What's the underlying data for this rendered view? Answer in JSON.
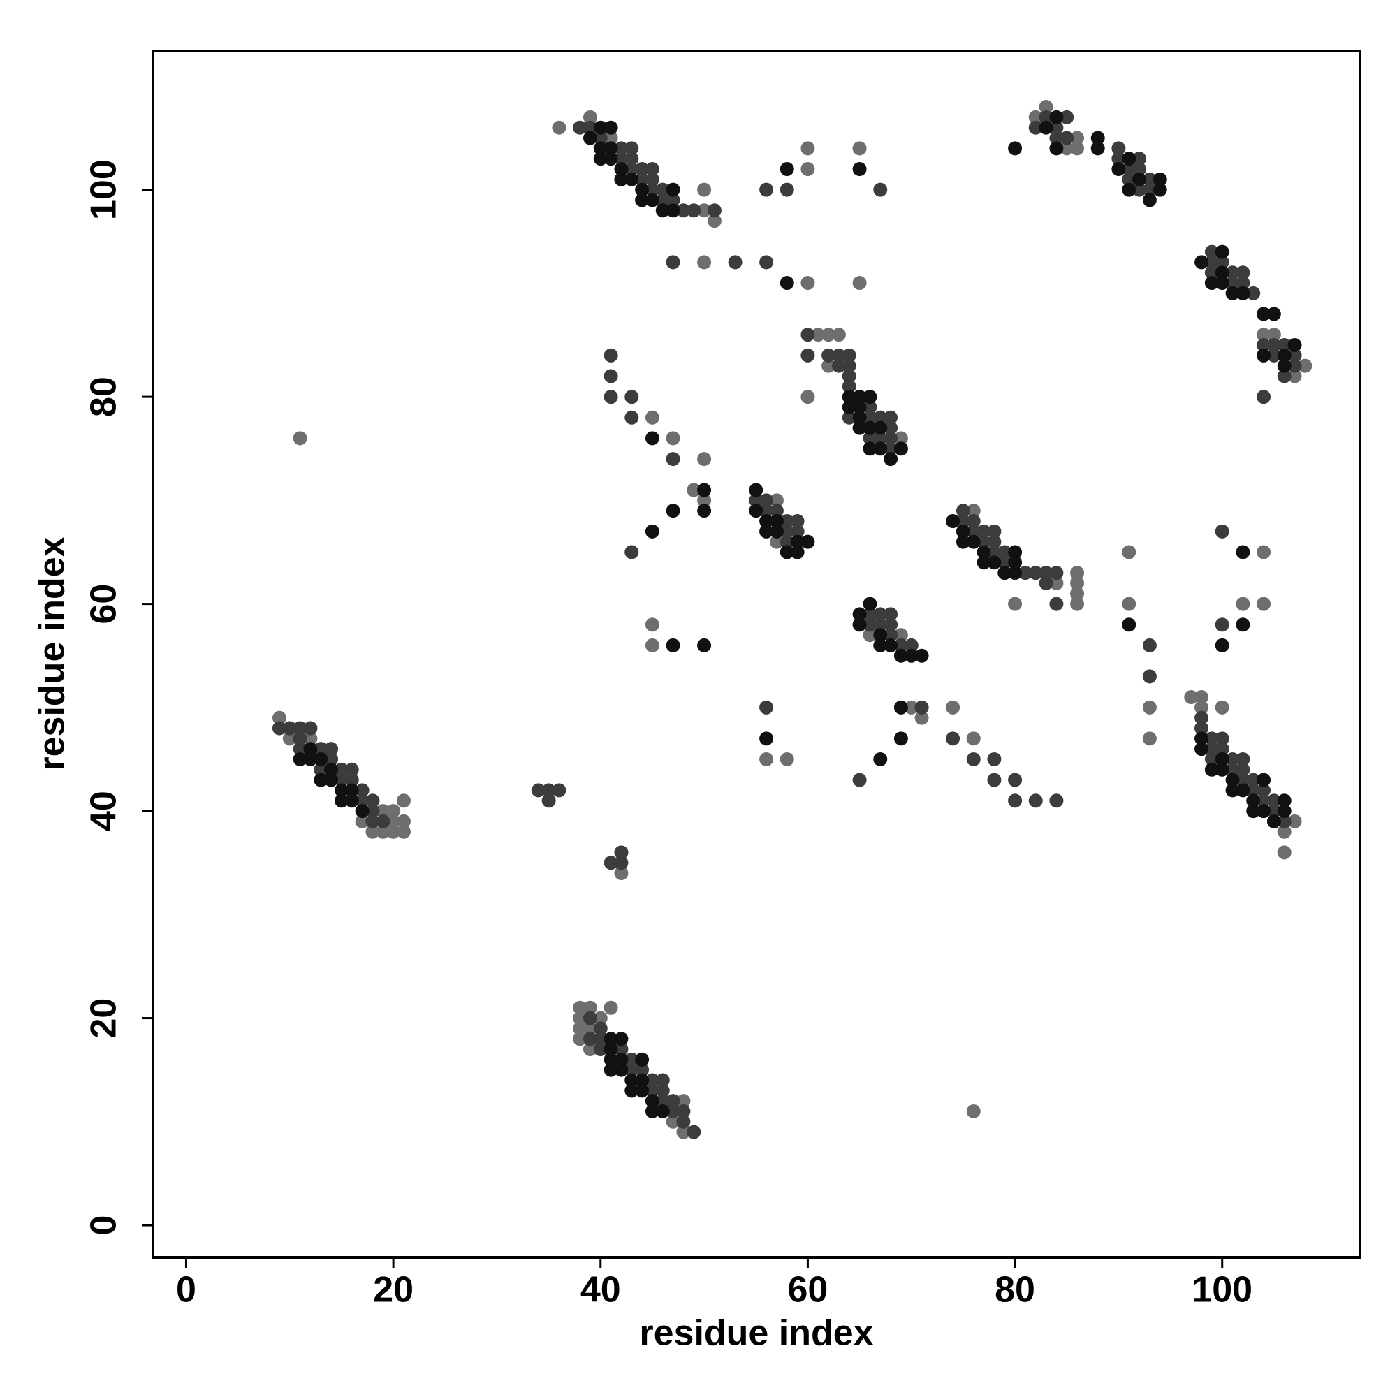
{
  "chart_data": {
    "type": "scatter",
    "xlabel": "residue index",
    "ylabel": "residue index",
    "xlim": [
      -3.2,
      113.3
    ],
    "ylim": [
      -3.1,
      113.4
    ],
    "xticks": [
      0,
      20,
      40,
      60,
      80,
      100
    ],
    "yticks": [
      0,
      20,
      40,
      60,
      80,
      100
    ],
    "series": [
      {
        "color": "#6e6e6e",
        "x": [
          9,
          12,
          10,
          19,
          20,
          17,
          20,
          21,
          18,
          19,
          20,
          21,
          21,
          11,
          38,
          39,
          41,
          38,
          40,
          38,
          39,
          38,
          39,
          47,
          48,
          48,
          76,
          42,
          36,
          39,
          41,
          50,
          51,
          50,
          60,
          65,
          60,
          50,
          60,
          65,
          61,
          62,
          63,
          62,
          60,
          69,
          47,
          50,
          45,
          49,
          50,
          45,
          45,
          57,
          57,
          66,
          69,
          56,
          58,
          70,
          71,
          74,
          76,
          76,
          84,
          86,
          86,
          86,
          86,
          80,
          82,
          83,
          85,
          86,
          86,
          105,
          104,
          108,
          107,
          97,
          98,
          98,
          100,
          106,
          106,
          107,
          91,
          91,
          93,
          93,
          102,
          104,
          104
        ],
        "values": [
          49,
          47,
          47,
          40,
          40,
          39,
          39,
          39,
          38,
          38,
          38,
          38,
          41,
          76,
          21,
          21,
          21,
          20,
          20,
          19,
          19,
          18,
          17,
          10,
          12,
          9,
          11,
          34,
          106,
          107,
          105,
          100,
          97,
          98,
          104,
          104,
          102,
          93,
          91,
          91,
          86,
          86,
          86,
          83,
          80,
          76,
          76,
          74,
          78,
          71,
          70,
          58,
          56,
          70,
          66,
          57,
          57,
          45,
          45,
          50,
          49,
          50,
          47,
          69,
          62,
          63,
          62,
          61,
          60,
          60,
          107,
          108,
          104,
          104,
          105,
          86,
          86,
          83,
          82,
          51,
          51,
          50,
          50,
          38,
          36,
          39,
          65,
          60,
          50,
          47,
          60,
          60,
          65
        ]
      },
      {
        "color": "#3c3c3c",
        "x": [
          9,
          10,
          11,
          12,
          11,
          11,
          13,
          14,
          14,
          13,
          15,
          16,
          15,
          16,
          17,
          17,
          18,
          18,
          18,
          19,
          39,
          40,
          39,
          40,
          40,
          42,
          43,
          43,
          44,
          45,
          46,
          45,
          46,
          46,
          47,
          47,
          48,
          48,
          49,
          34,
          35,
          36,
          35,
          41,
          42,
          42,
          38,
          39,
          40,
          42,
          43,
          42,
          43,
          43,
          44,
          45,
          44,
          45,
          45,
          46,
          46,
          47,
          48,
          49,
          51,
          47,
          53,
          56,
          56,
          58,
          67,
          60,
          60,
          62,
          63,
          64,
          63,
          64,
          64,
          64,
          66,
          64,
          66,
          67,
          68,
          68,
          66,
          67,
          68,
          68,
          41,
          41,
          41,
          43,
          43,
          47,
          43,
          55,
          56,
          56,
          57,
          58,
          59,
          58,
          59,
          58,
          66,
          67,
          68,
          66,
          67,
          68,
          68,
          69,
          70,
          56,
          65,
          71,
          74,
          76,
          78,
          78,
          80,
          80,
          82,
          84,
          75,
          75,
          76,
          76,
          77,
          78,
          78,
          78,
          79,
          79,
          81,
          82,
          83,
          84,
          83,
          84,
          77,
          82,
          83,
          84,
          85,
          84,
          85,
          90,
          90,
          92,
          91,
          92,
          91,
          93,
          92,
          93,
          99,
          99,
          100,
          99,
          101,
          102,
          101,
          102,
          103,
          104,
          105,
          106,
          105,
          107,
          107,
          106,
          104,
          98,
          98,
          99,
          100,
          99,
          100,
          99,
          101,
          102,
          101,
          102,
          102,
          103,
          103,
          104,
          104,
          105,
          105,
          106,
          93,
          93,
          100,
          100
        ],
        "values": [
          48,
          48,
          48,
          48,
          47,
          46,
          46,
          46,
          45,
          44,
          44,
          44,
          43,
          43,
          42,
          41,
          41,
          40,
          39,
          39,
          20,
          19,
          18,
          18,
          17,
          17,
          16,
          15,
          15,
          14,
          14,
          13,
          13,
          12,
          12,
          11,
          11,
          10,
          9,
          42,
          42,
          42,
          41,
          35,
          35,
          36,
          106,
          106,
          105,
          104,
          104,
          103,
          103,
          102,
          102,
          102,
          101,
          101,
          100,
          100,
          99,
          99,
          98,
          98,
          98,
          93,
          93,
          93,
          100,
          100,
          100,
          86,
          84,
          84,
          84,
          84,
          83,
          83,
          82,
          81,
          79,
          78,
          78,
          78,
          78,
          77,
          76,
          76,
          76,
          75,
          84,
          82,
          80,
          80,
          78,
          74,
          65,
          70,
          70,
          69,
          69,
          68,
          68,
          67,
          67,
          66,
          59,
          59,
          59,
          58,
          58,
          58,
          57,
          56,
          56,
          50,
          43,
          50,
          47,
          45,
          45,
          43,
          43,
          41,
          41,
          41,
          69,
          68,
          68,
          67,
          67,
          67,
          66,
          65,
          65,
          64,
          63,
          63,
          63,
          63,
          62,
          60,
          66,
          106,
          107,
          106,
          107,
          105,
          105,
          104,
          103,
          103,
          102,
          102,
          101,
          101,
          100,
          100,
          94,
          93,
          93,
          92,
          92,
          92,
          91,
          91,
          90,
          85,
          85,
          85,
          84,
          84,
          83,
          82,
          80,
          49,
          48,
          47,
          47,
          46,
          46,
          45,
          45,
          45,
          44,
          44,
          43,
          43,
          42,
          42,
          41,
          41,
          40,
          39,
          56,
          53,
          67,
          58
        ]
      },
      {
        "color": "#111111",
        "x": [
          12,
          11,
          12,
          13,
          14,
          13,
          14,
          15,
          16,
          15,
          16,
          17,
          41,
          42,
          41,
          41,
          42,
          44,
          41,
          42,
          43,
          44,
          43,
          44,
          45,
          45,
          46,
          39,
          40,
          41,
          40,
          41,
          40,
          41,
          42,
          42,
          43,
          44,
          44,
          45,
          46,
          47,
          47,
          58,
          58,
          65,
          64,
          64,
          65,
          66,
          65,
          65,
          65,
          66,
          67,
          66,
          67,
          68,
          69,
          45,
          47,
          45,
          50,
          50,
          47,
          50,
          55,
          55,
          56,
          57,
          56,
          57,
          59,
          60,
          58,
          59,
          66,
          65,
          65,
          67,
          67,
          68,
          69,
          70,
          71,
          56,
          67,
          69,
          69,
          74,
          75,
          75,
          76,
          77,
          77,
          78,
          79,
          80,
          80,
          80,
          80,
          83,
          84,
          84,
          88,
          88,
          90,
          91,
          92,
          93,
          94,
          94,
          91,
          98,
          99,
          100,
          100,
          101,
          102,
          104,
          105,
          104,
          106,
          106,
          107,
          100,
          98,
          98,
          99,
          100,
          100,
          101,
          101,
          102,
          103,
          103,
          104,
          104,
          105,
          106,
          106,
          91,
          102,
          102,
          100
        ],
        "values": [
          46,
          45,
          45,
          45,
          44,
          43,
          43,
          42,
          42,
          41,
          41,
          40,
          18,
          18,
          17,
          16,
          16,
          16,
          15,
          15,
          14,
          14,
          13,
          13,
          12,
          11,
          11,
          105,
          106,
          106,
          104,
          104,
          103,
          103,
          102,
          101,
          101,
          100,
          99,
          99,
          98,
          98,
          100,
          91,
          102,
          102,
          80,
          79,
          80,
          80,
          79,
          78,
          77,
          77,
          77,
          75,
          75,
          74,
          75,
          76,
          69,
          67,
          69,
          71,
          56,
          56,
          71,
          69,
          68,
          68,
          67,
          67,
          66,
          66,
          65,
          65,
          60,
          59,
          58,
          57,
          56,
          56,
          55,
          55,
          55,
          47,
          45,
          47,
          50,
          68,
          67,
          66,
          66,
          65,
          64,
          64,
          63,
          63,
          64,
          65,
          104,
          106,
          107,
          104,
          105,
          104,
          102,
          100,
          101,
          99,
          101,
          100,
          103,
          93,
          91,
          92,
          91,
          90,
          90,
          88,
          88,
          84,
          84,
          83,
          85,
          94,
          47,
          46,
          44,
          45,
          44,
          43,
          42,
          42,
          40,
          41,
          43,
          40,
          39,
          41,
          40,
          58,
          65,
          58,
          56
        ]
      }
    ]
  }
}
